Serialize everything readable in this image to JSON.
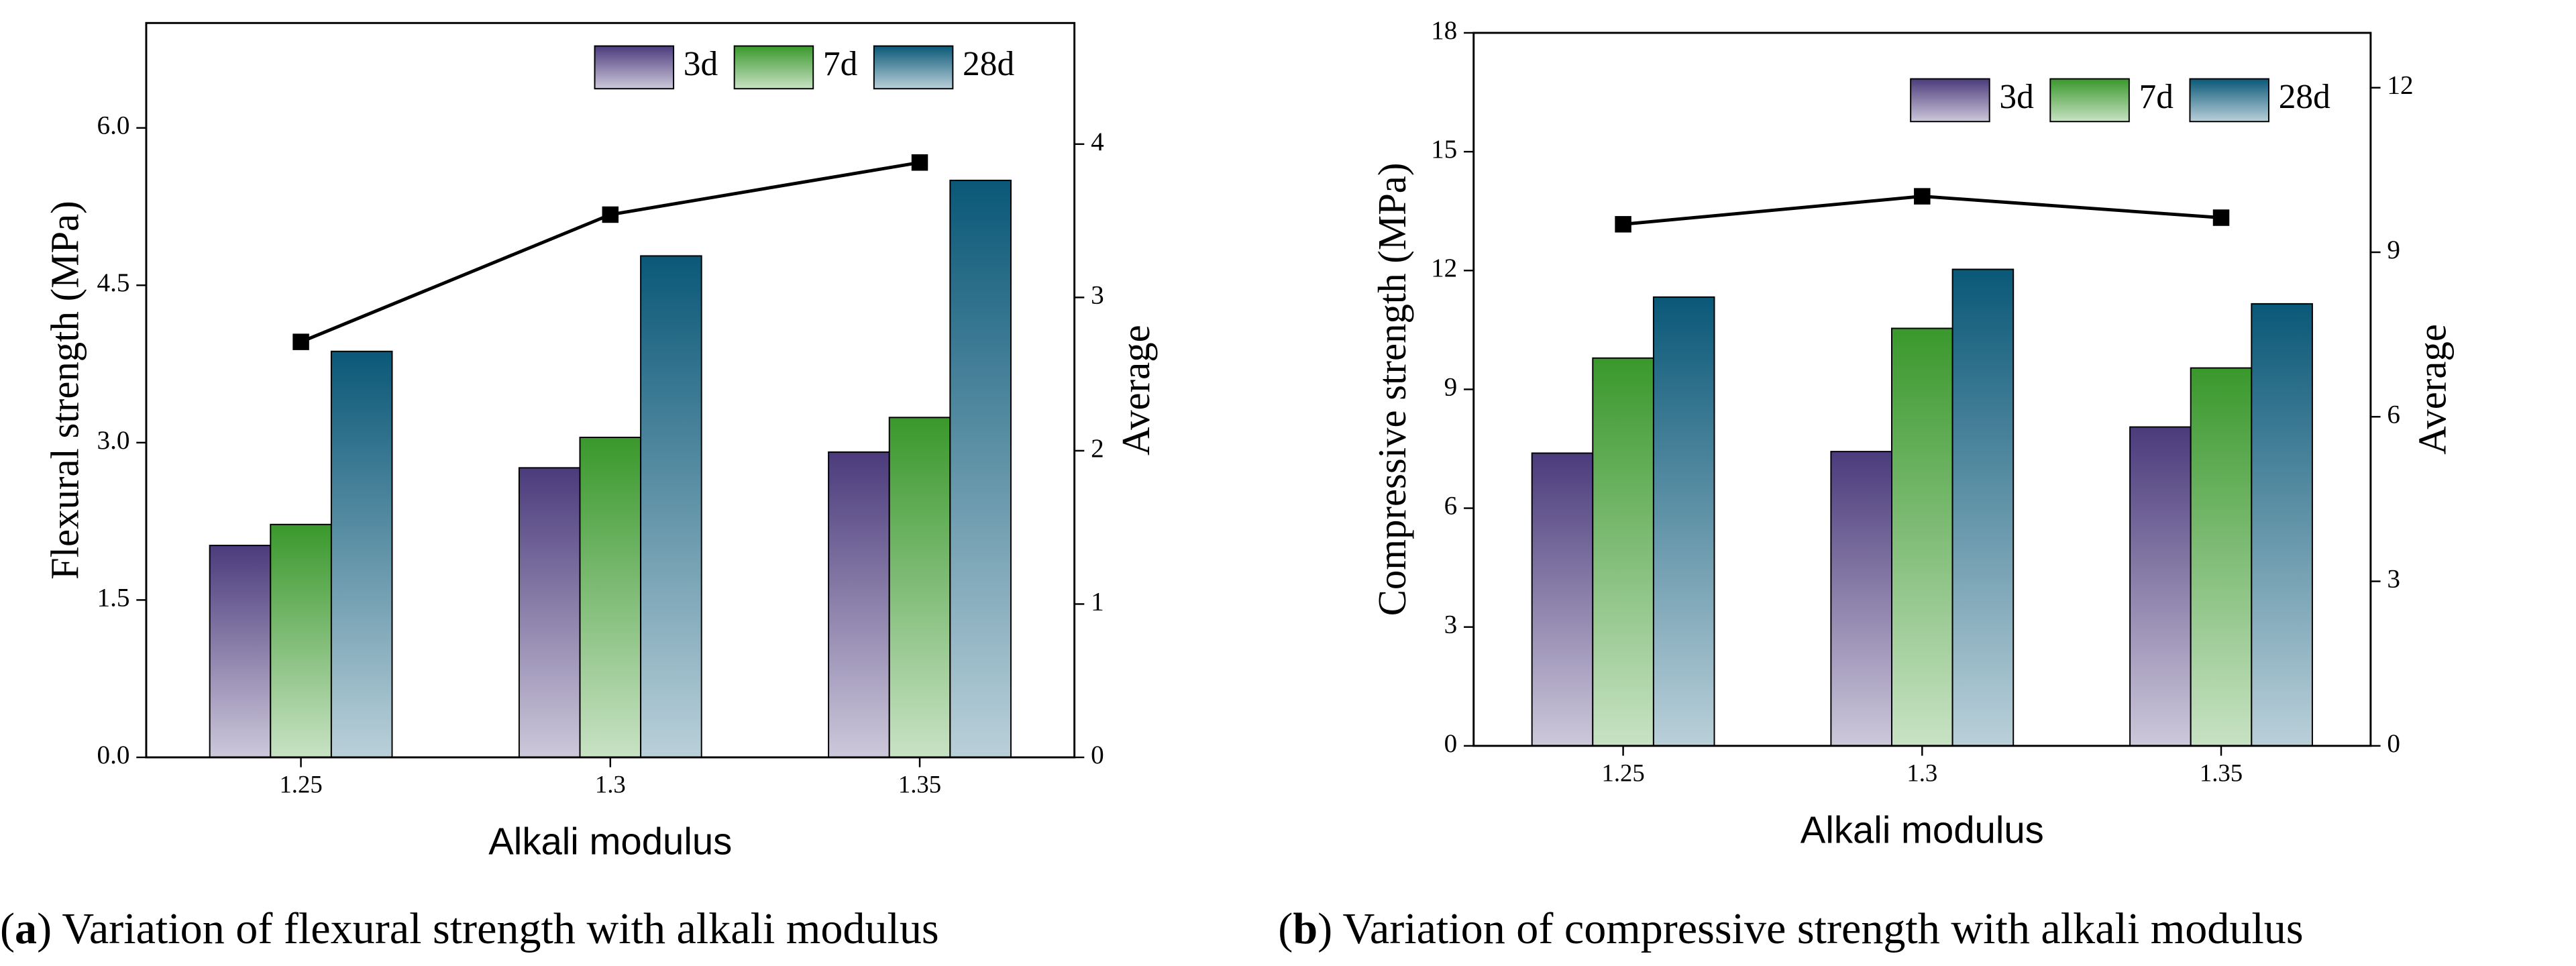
{
  "chart_data": [
    {
      "type": "bar",
      "xlabel": "Alkali modulus",
      "ylabel": "Flexural strength (MPa)",
      "y2label": "Average",
      "caption": [
        "(",
        "a",
        ") Variation of flexural strength with alkali modulus"
      ],
      "categories": [
        "1.25",
        "1.3",
        "1.35"
      ],
      "series": [
        {
          "name": "3d",
          "color": "#4b3b7c",
          "values": [
            2.02,
            2.76,
            2.91
          ]
        },
        {
          "name": "7d",
          "color": "#3a982c",
          "values": [
            2.22,
            3.05,
            3.24
          ]
        },
        {
          "name": "28d",
          "color": "#0a5878",
          "values": [
            3.87,
            4.78,
            5.5
          ]
        }
      ],
      "line": {
        "axis": "y2",
        "color": "#000000",
        "values": [
          2.71,
          3.54,
          3.88
        ]
      },
      "ylim": [
        0,
        7
      ],
      "yticks": [
        {
          "value": 0,
          "label": "0.0"
        },
        1.5,
        {
          "value": 3,
          "label": "3.0"
        },
        4.5,
        {
          "value": 6,
          "label": "6.0"
        }
      ],
      "y2lim": [
        0,
        4.79
      ],
      "y2ticks": [
        0,
        1,
        2,
        3,
        4
      ],
      "legend": "upper right",
      "grid": false
    },
    {
      "type": "bar",
      "xlabel": "Alkali modulus",
      "ylabel": "Compressive strength (MPa)",
      "y2label": "Average",
      "caption": [
        "(",
        "b",
        ") Variation of compressive strength with alkali modulus"
      ],
      "categories": [
        "1.25",
        "1.3",
        "1.35"
      ],
      "series": [
        {
          "name": "3d",
          "color": "#4b3b7c",
          "values": [
            7.39,
            7.43,
            8.05
          ]
        },
        {
          "name": "7d",
          "color": "#3a982c",
          "values": [
            9.79,
            10.54,
            9.54
          ]
        },
        {
          "name": "28d",
          "color": "#0a5878",
          "values": [
            11.33,
            12.03,
            11.16
          ]
        }
      ],
      "line": {
        "axis": "y2",
        "color": "#000000",
        "values": [
          9.51,
          10.02,
          9.63
        ]
      },
      "ylim": [
        0,
        18
      ],
      "yticks": [
        0,
        3,
        6,
        9,
        12,
        15,
        18
      ],
      "y2lim": [
        0,
        13
      ],
      "y2ticks": [
        0,
        3,
        6,
        9,
        12
      ],
      "legend": "upper right",
      "grid": false
    }
  ]
}
